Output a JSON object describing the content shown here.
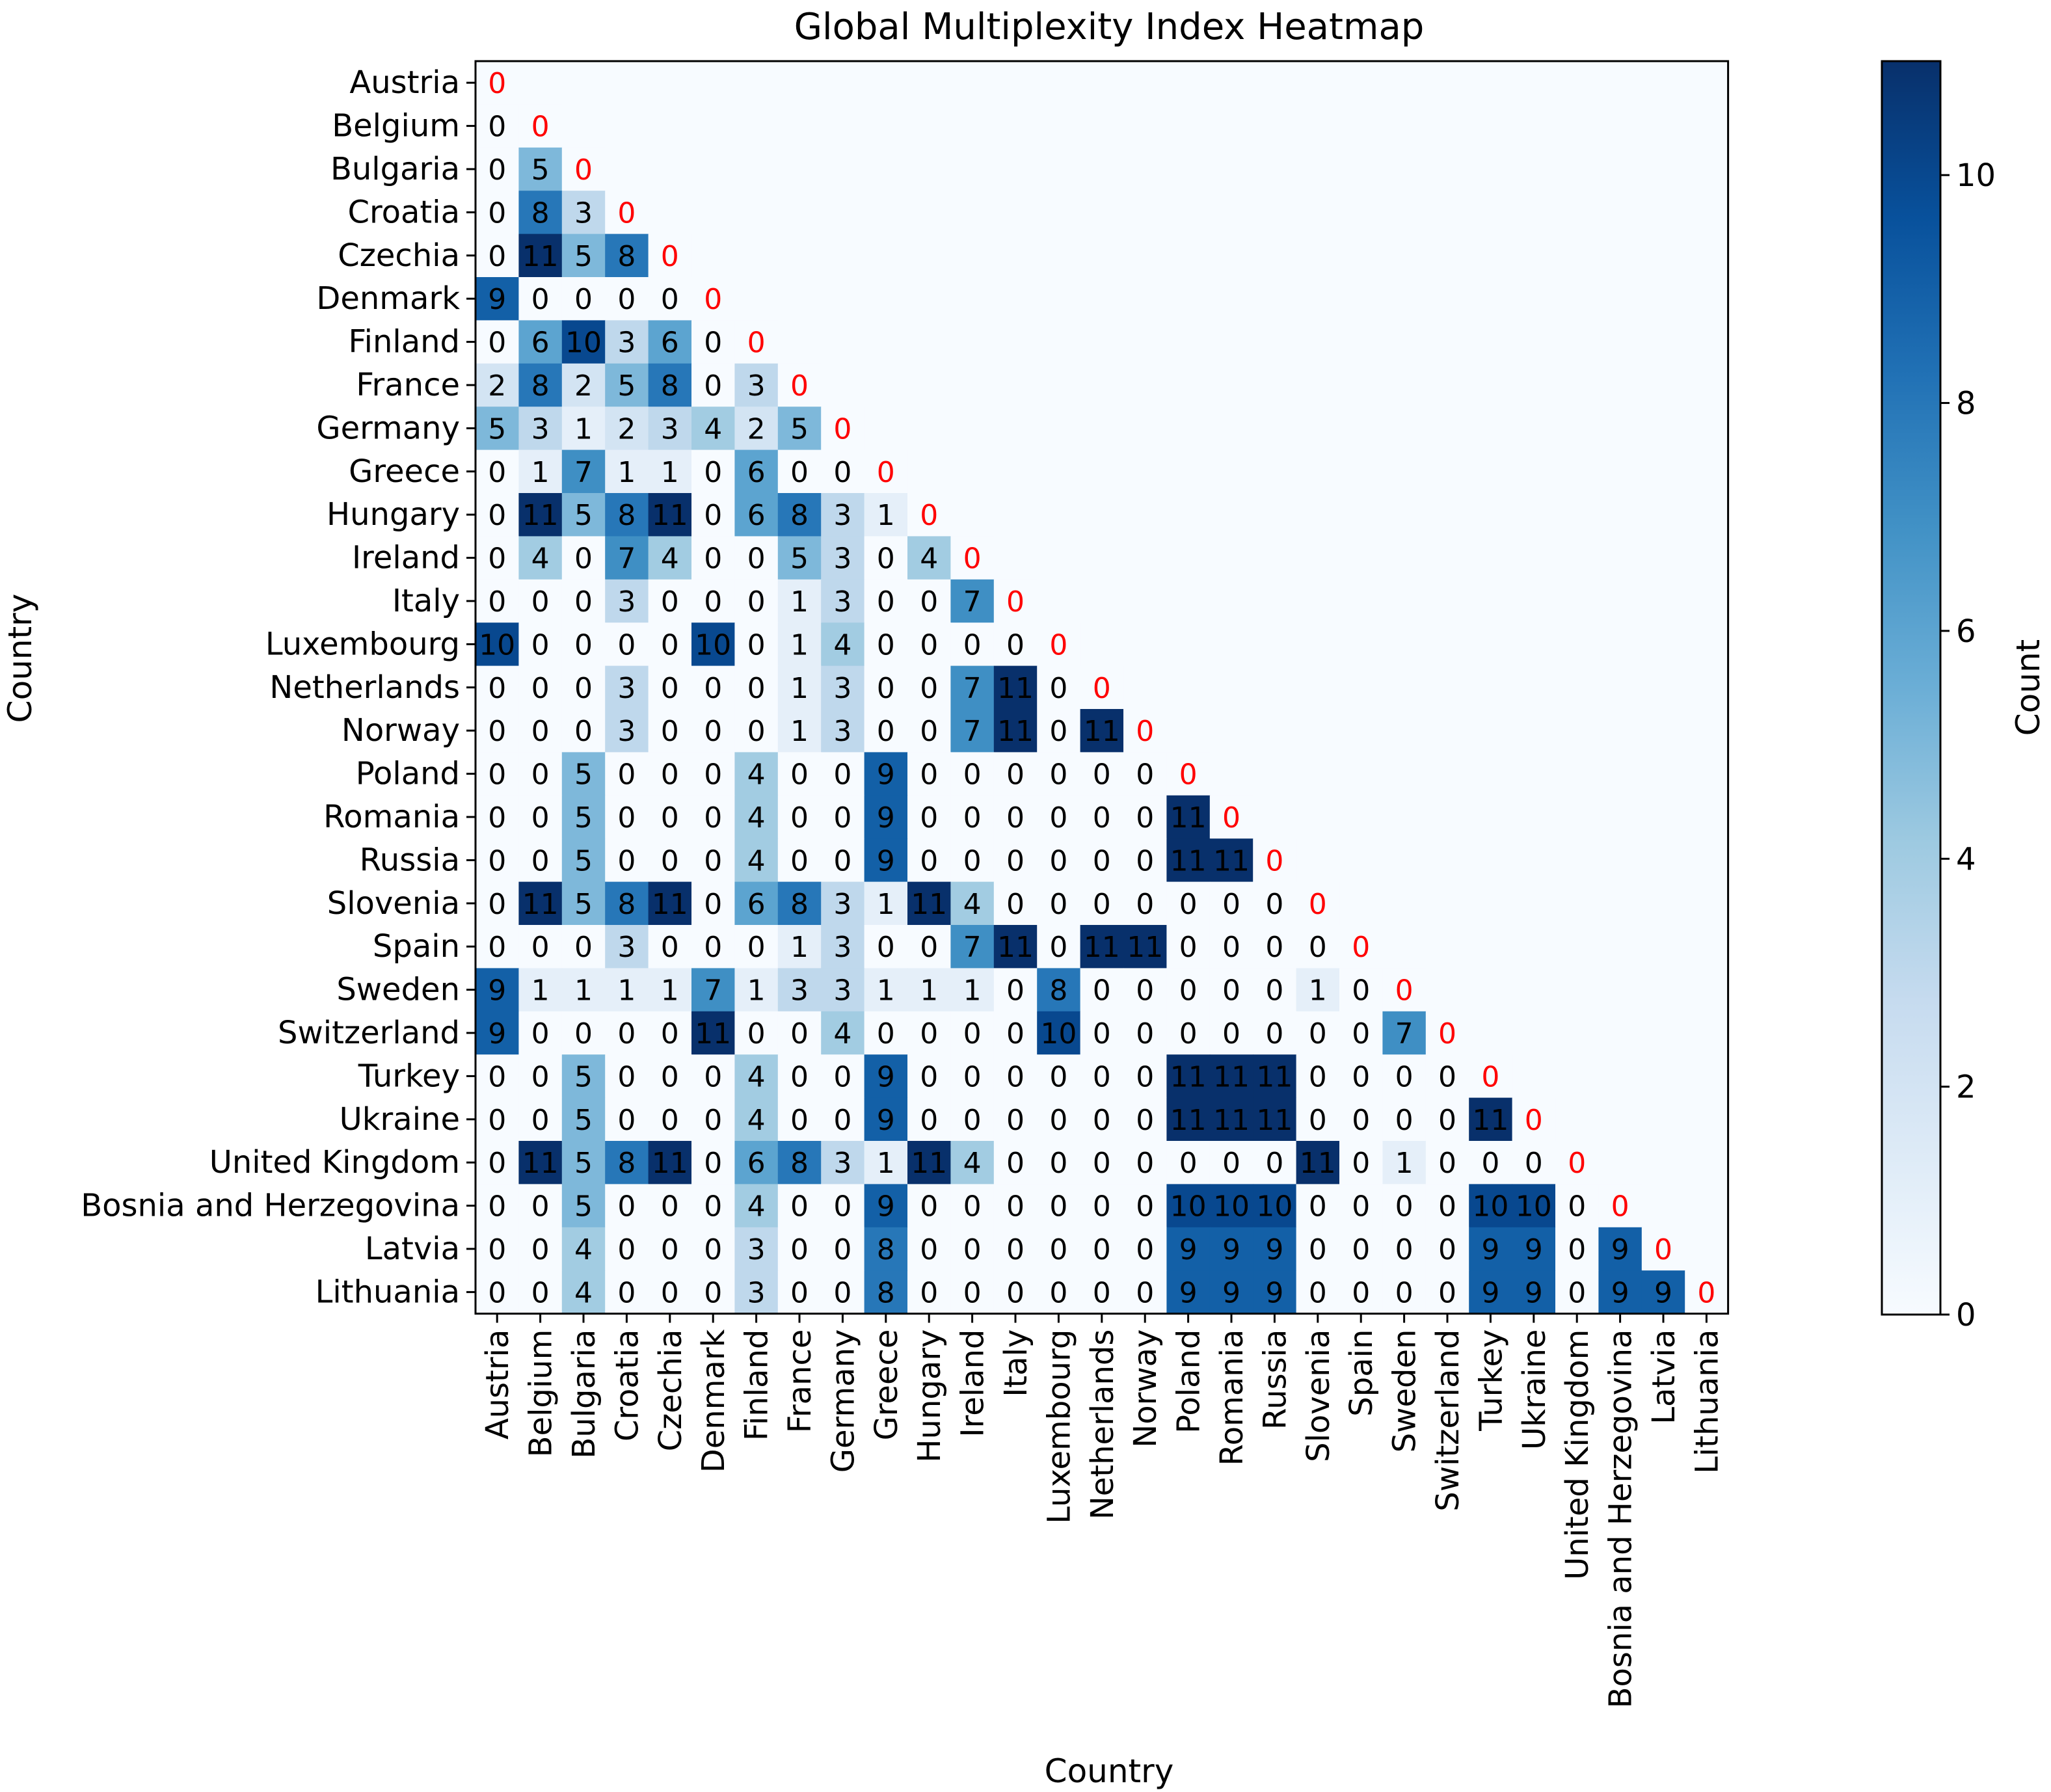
{
  "chart_data": {
    "type": "heatmap",
    "title": "Global Multiplexity Index Heatmap",
    "xlabel": "Country",
    "ylabel": "Country",
    "colorbar": {
      "label": "Count",
      "ticks": [
        0,
        2,
        4,
        6,
        8,
        10
      ],
      "range": [
        0,
        11
      ],
      "colormap": "Blues"
    },
    "diagonal_color": "#ff0000",
    "countries": [
      "Austria",
      "Belgium",
      "Bulgaria",
      "Croatia",
      "Czechia",
      "Denmark",
      "Finland",
      "France",
      "Germany",
      "Greece",
      "Hungary",
      "Ireland",
      "Italy",
      "Luxembourg",
      "Netherlands",
      "Norway",
      "Poland",
      "Romania",
      "Russia",
      "Slovenia",
      "Spain",
      "Sweden",
      "Switzerland",
      "Turkey",
      "Ukraine",
      "United Kingdom",
      "Bosnia and Herzegovina",
      "Latvia",
      "Lithuania"
    ],
    "rows": [
      [
        0
      ],
      [
        0,
        0
      ],
      [
        0,
        5,
        0
      ],
      [
        0,
        8,
        3,
        0
      ],
      [
        0,
        11,
        5,
        8,
        0
      ],
      [
        9,
        0,
        0,
        0,
        0,
        0
      ],
      [
        0,
        6,
        10,
        3,
        6,
        0,
        0
      ],
      [
        2,
        8,
        2,
        5,
        8,
        0,
        3,
        0
      ],
      [
        5,
        3,
        1,
        2,
        3,
        4,
        2,
        5,
        0
      ],
      [
        0,
        1,
        7,
        1,
        1,
        0,
        6,
        0,
        0,
        0
      ],
      [
        0,
        11,
        5,
        8,
        11,
        0,
        6,
        8,
        3,
        1,
        0
      ],
      [
        0,
        4,
        0,
        7,
        4,
        0,
        0,
        5,
        3,
        0,
        4,
        0
      ],
      [
        0,
        0,
        0,
        3,
        0,
        0,
        0,
        1,
        3,
        0,
        0,
        7,
        0
      ],
      [
        10,
        0,
        0,
        0,
        0,
        10,
        0,
        1,
        4,
        0,
        0,
        0,
        0,
        0
      ],
      [
        0,
        0,
        0,
        3,
        0,
        0,
        0,
        1,
        3,
        0,
        0,
        7,
        11,
        0,
        0
      ],
      [
        0,
        0,
        0,
        3,
        0,
        0,
        0,
        1,
        3,
        0,
        0,
        7,
        11,
        0,
        11,
        0
      ],
      [
        0,
        0,
        5,
        0,
        0,
        0,
        4,
        0,
        0,
        9,
        0,
        0,
        0,
        0,
        0,
        0,
        0
      ],
      [
        0,
        0,
        5,
        0,
        0,
        0,
        4,
        0,
        0,
        9,
        0,
        0,
        0,
        0,
        0,
        0,
        11,
        0
      ],
      [
        0,
        0,
        5,
        0,
        0,
        0,
        4,
        0,
        0,
        9,
        0,
        0,
        0,
        0,
        0,
        0,
        11,
        11,
        0
      ],
      [
        0,
        11,
        5,
        8,
        11,
        0,
        6,
        8,
        3,
        1,
        11,
        4,
        0,
        0,
        0,
        0,
        0,
        0,
        0,
        0
      ],
      [
        0,
        0,
        0,
        3,
        0,
        0,
        0,
        1,
        3,
        0,
        0,
        7,
        11,
        0,
        11,
        11,
        0,
        0,
        0,
        0,
        0
      ],
      [
        9,
        1,
        1,
        1,
        1,
        7,
        1,
        3,
        3,
        1,
        1,
        1,
        0,
        8,
        0,
        0,
        0,
        0,
        0,
        1,
        0,
        0
      ],
      [
        9,
        0,
        0,
        0,
        0,
        11,
        0,
        0,
        4,
        0,
        0,
        0,
        0,
        10,
        0,
        0,
        0,
        0,
        0,
        0,
        0,
        7,
        0
      ],
      [
        0,
        0,
        5,
        0,
        0,
        0,
        4,
        0,
        0,
        9,
        0,
        0,
        0,
        0,
        0,
        0,
        11,
        11,
        11,
        0,
        0,
        0,
        0,
        0
      ],
      [
        0,
        0,
        5,
        0,
        0,
        0,
        4,
        0,
        0,
        9,
        0,
        0,
        0,
        0,
        0,
        0,
        11,
        11,
        11,
        0,
        0,
        0,
        0,
        11,
        0
      ],
      [
        0,
        11,
        5,
        8,
        11,
        0,
        6,
        8,
        3,
        1,
        11,
        4,
        0,
        0,
        0,
        0,
        0,
        0,
        0,
        11,
        0,
        1,
        0,
        0,
        0,
        0
      ],
      [
        0,
        0,
        5,
        0,
        0,
        0,
        4,
        0,
        0,
        9,
        0,
        0,
        0,
        0,
        0,
        0,
        10,
        10,
        10,
        0,
        0,
        0,
        0,
        10,
        10,
        0,
        0
      ],
      [
        0,
        0,
        4,
        0,
        0,
        0,
        3,
        0,
        0,
        8,
        0,
        0,
        0,
        0,
        0,
        0,
        9,
        9,
        9,
        0,
        0,
        0,
        0,
        9,
        9,
        0,
        9,
        0
      ],
      [
        0,
        0,
        4,
        0,
        0,
        0,
        3,
        0,
        0,
        8,
        0,
        0,
        0,
        0,
        0,
        0,
        9,
        9,
        9,
        0,
        0,
        0,
        0,
        9,
        9,
        0,
        9,
        9,
        0
      ]
    ]
  }
}
